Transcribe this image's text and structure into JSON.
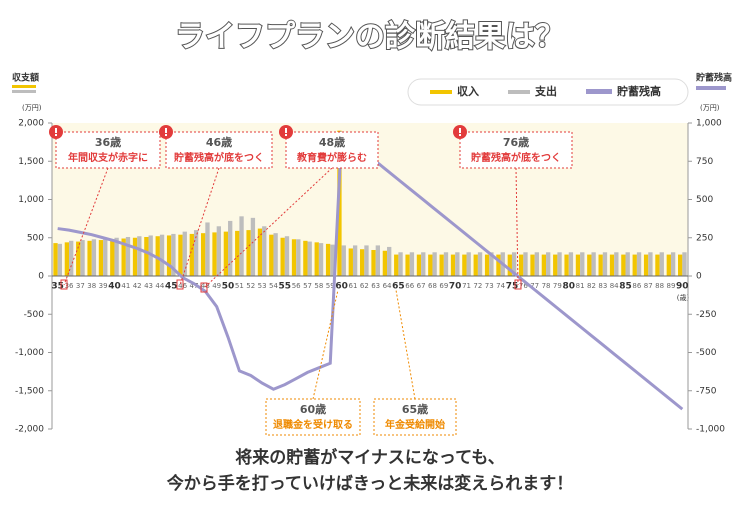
{
  "chart_data": {
    "type": "bar_line",
    "title": "ライフプランの診断結果は？",
    "y_label": "収支額",
    "y_unit": "(万円)",
    "y2_label": "貯蓄残高",
    "y2_unit": "(万円)",
    "x_unit": "(歳)",
    "categories": [
      "35",
      "36",
      "37",
      "38",
      "39",
      "40",
      "41",
      "42",
      "43",
      "44",
      "45",
      "46",
      "47",
      "48",
      "49",
      "50",
      "51",
      "52",
      "53",
      "54",
      "55",
      "56",
      "57",
      "58",
      "59",
      "60",
      "61",
      "62",
      "63",
      "64",
      "65",
      "66",
      "67",
      "68",
      "69",
      "70",
      "71",
      "72",
      "73",
      "74",
      "75",
      "76",
      "77",
      "78",
      "79",
      "80",
      "81",
      "82",
      "83",
      "84",
      "85",
      "86",
      "87",
      "88",
      "89",
      "90"
    ],
    "series": [
      {
        "name": "収入",
        "type": "bar",
        "color": "#f2c500",
        "values": [
          430,
          440,
          450,
          460,
          470,
          480,
          490,
          500,
          510,
          520,
          530,
          540,
          550,
          560,
          570,
          580,
          590,
          600,
          620,
          540,
          500,
          480,
          460,
          440,
          420,
          1900,
          360,
          350,
          340,
          330,
          280,
          280,
          280,
          280,
          280,
          280,
          280,
          280,
          280,
          280,
          280,
          280,
          280,
          280,
          280,
          280,
          280,
          280,
          280,
          280,
          280,
          280,
          280,
          280,
          280,
          280
        ]
      },
      {
        "name": "支出",
        "type": "bar",
        "color": "#bdbdbd",
        "values": [
          420,
          460,
          470,
          480,
          490,
          500,
          510,
          520,
          530,
          540,
          550,
          580,
          600,
          700,
          650,
          720,
          780,
          760,
          650,
          560,
          520,
          480,
          450,
          430,
          410,
          400,
          400,
          400,
          400,
          380,
          310,
          310,
          310,
          310,
          310,
          310,
          310,
          310,
          310,
          310,
          310,
          310,
          310,
          310,
          310,
          310,
          310,
          310,
          310,
          310,
          310,
          310,
          310,
          310,
          310,
          310
        ]
      },
      {
        "name": "貯蓄残高",
        "type": "line",
        "axis": "y2",
        "color": "#9d97cc",
        "values": [
          310,
          300,
          285,
          270,
          250,
          230,
          205,
          180,
          150,
          110,
          60,
          -10,
          -50,
          -100,
          -200,
          -400,
          -620,
          -650,
          -700,
          -740,
          -710,
          -670,
          -630,
          -600,
          -570,
          930,
          870,
          810,
          750,
          690,
          630,
          570,
          510,
          450,
          390,
          330,
          270,
          210,
          150,
          90,
          30,
          -30,
          -90,
          -150,
          -210,
          -270,
          -330,
          -390,
          -450,
          -510,
          -570,
          -630,
          -690,
          -750,
          -810,
          -870
        ]
      }
    ],
    "ylim": [
      -2000,
      2000
    ],
    "yticks": [
      {
        "value": -2000,
        "label": "-2,000"
      },
      {
        "value": -1500,
        "label": "-1,500"
      },
      {
        "value": -1000,
        "label": "-1,000"
      },
      -500,
      0,
      500,
      {
        "value": 1000,
        "label": "1,000"
      },
      {
        "value": 1500,
        "label": "1,500"
      },
      {
        "value": 2000,
        "label": "2,000"
      }
    ],
    "y2lim": [
      -1000,
      1000
    ],
    "y2ticks": [
      {
        "value": -1000,
        "label": "-1,000"
      },
      -750,
      -500,
      -250,
      0,
      250,
      500,
      750,
      {
        "value": 1000,
        "label": "1,000"
      }
    ],
    "annotations": [
      {
        "label": "36歳",
        "text": "年間収支が赤字に"
      },
      {
        "label": "46歳",
        "text": "貯蓄残高が底をつく"
      },
      {
        "label": "48歳",
        "text": "教育費が膨らむ"
      },
      {
        "label": "76歳",
        "text": "貯蓄残高が底をつく"
      },
      {
        "label": "60歳",
        "text": "退職金を受け取る"
      },
      {
        "label": "65歳",
        "text": "年金受給開始"
      }
    ],
    "footer": [
      "将来の貯蓄がマイナスになっても、",
      "今から手を打っていけばきっと未来は変えられます！"
    ]
  }
}
